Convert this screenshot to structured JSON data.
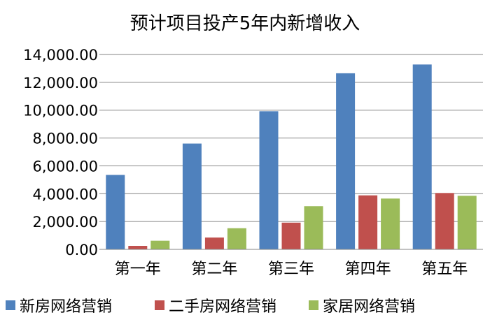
{
  "chart_data": {
    "type": "bar",
    "title": "预计项目投产5年内新增收入",
    "categories": [
      "第一年",
      "第二年",
      "第三年",
      "第四年",
      "第五年"
    ],
    "series": [
      {
        "name": "新房网络营销",
        "color": "#4F81BD",
        "values": [
          5350,
          7600,
          9920,
          12650,
          13280
        ]
      },
      {
        "name": "二手房网络营销",
        "color": "#C0504D",
        "values": [
          250,
          850,
          1920,
          3880,
          4050
        ]
      },
      {
        "name": "家居网络营销",
        "color": "#9BBB59",
        "values": [
          620,
          1520,
          3100,
          3650,
          3850
        ]
      }
    ],
    "yticks": [
      "0.00",
      "2,000.00",
      "4,000.00",
      "6,000.00",
      "8,000.00",
      "10,000.00",
      "12,000.00",
      "14,000.00"
    ],
    "ylim": [
      0,
      14000
    ],
    "grid": true,
    "legend_position": "bottom"
  }
}
